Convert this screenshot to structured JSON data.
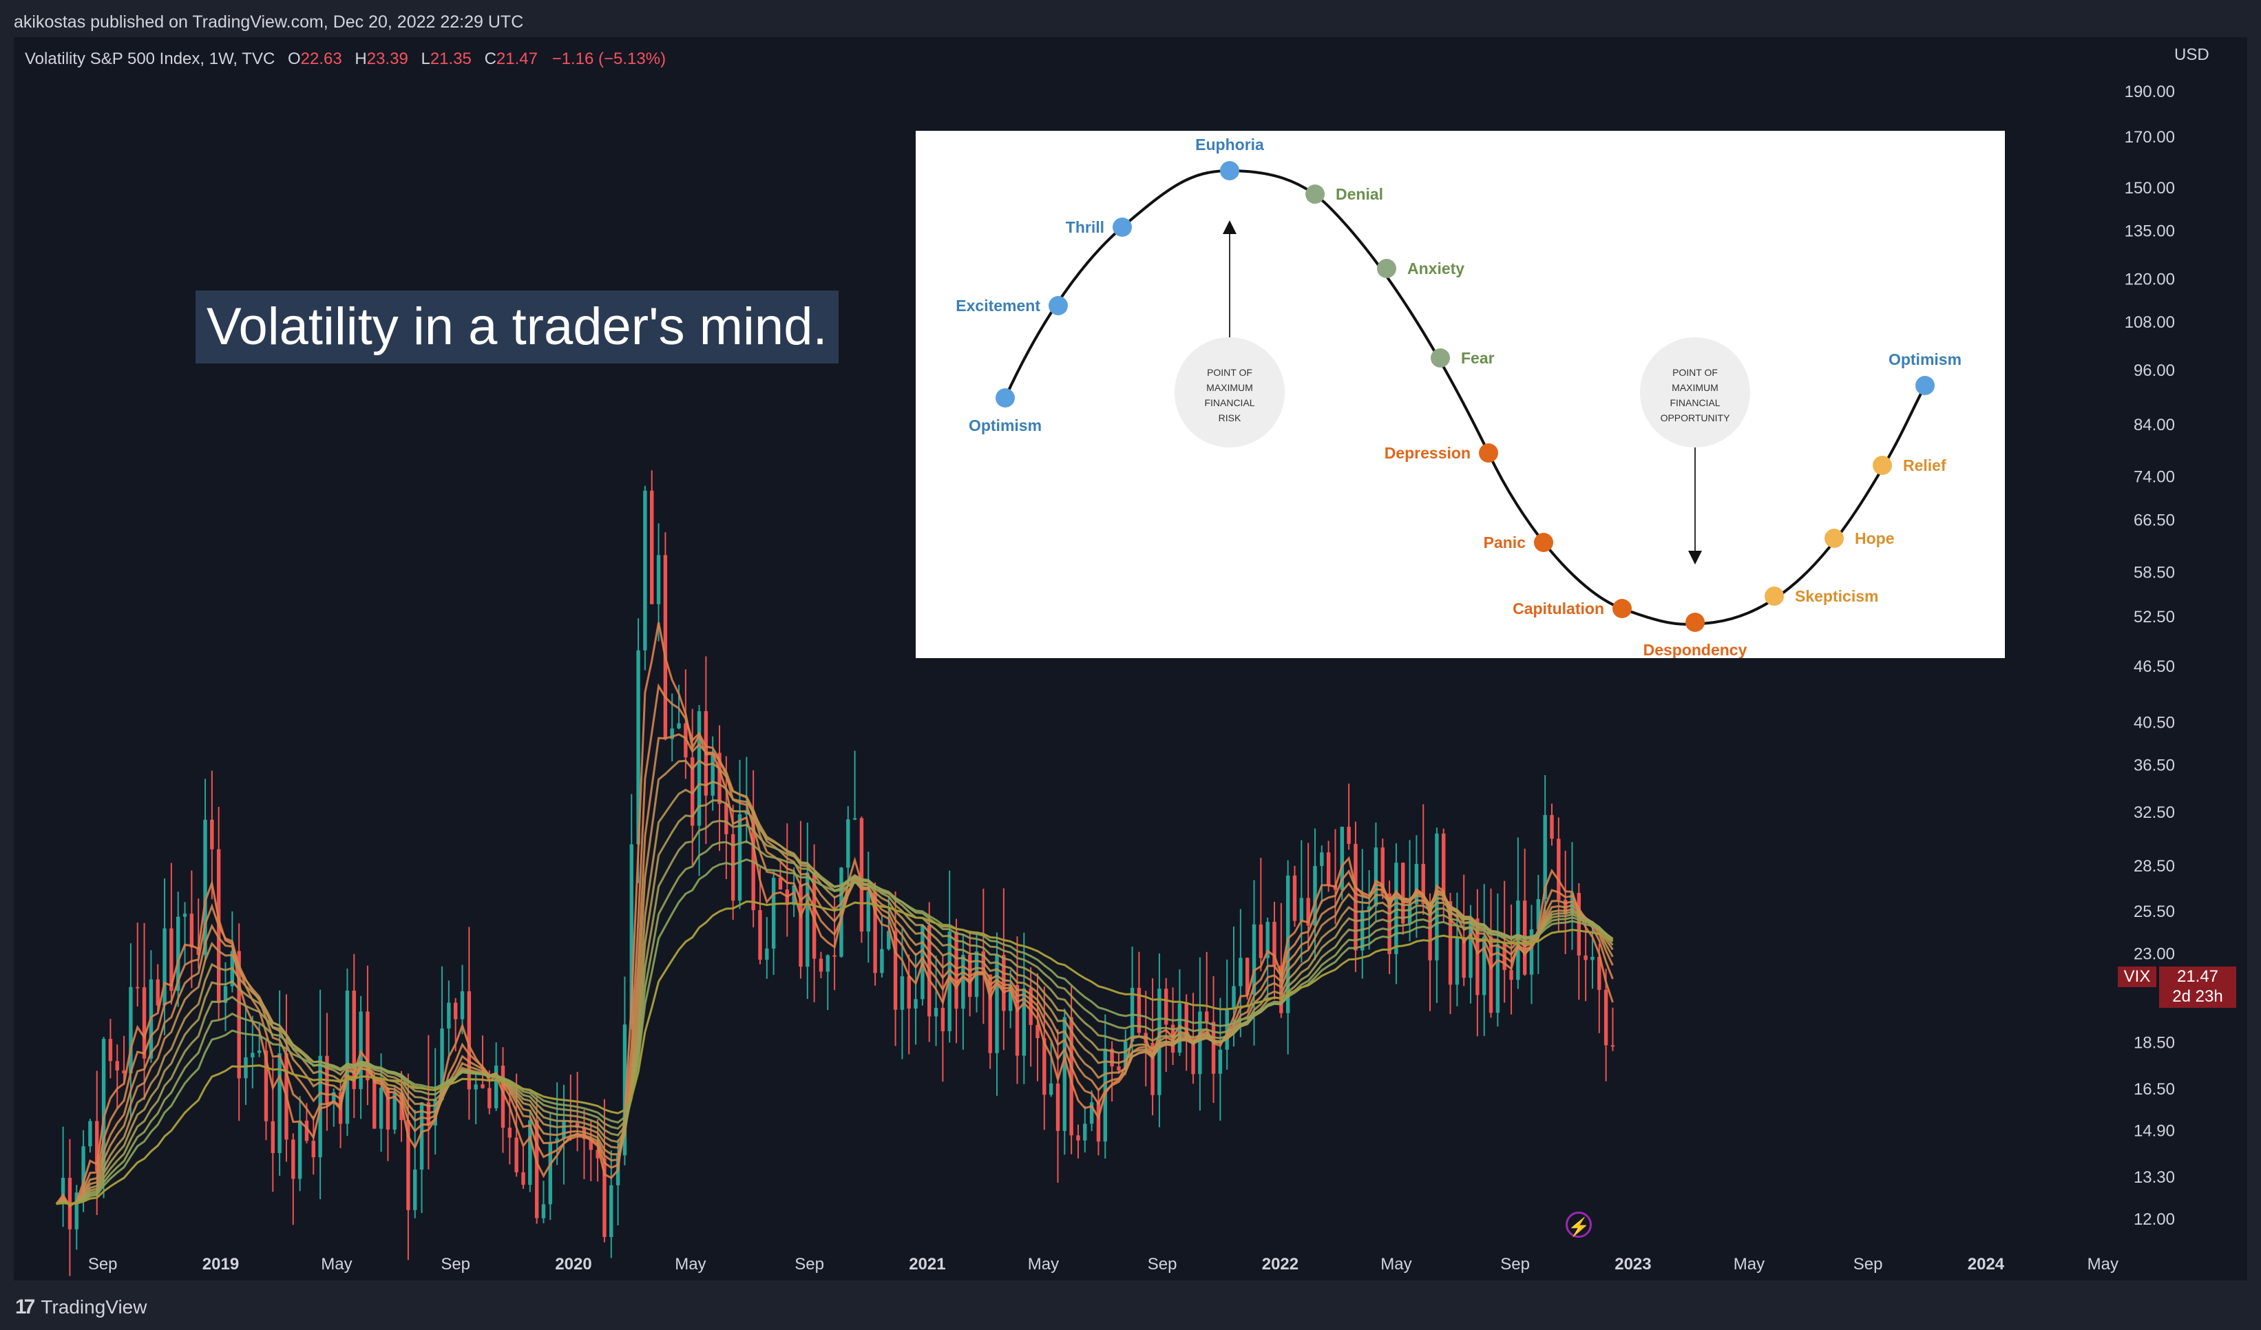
{
  "header": {
    "published": "akikostas published on TradingView.com, Dec 20, 2022 22:29 UTC"
  },
  "legend": {
    "symbol": "Volatility S&P 500 Index, 1W, TVC",
    "o_label": "O",
    "o_value": "22.63",
    "h_label": "H",
    "h_value": "23.39",
    "l_label": "L",
    "l_value": "21.35",
    "c_label": "C",
    "c_value": "21.47",
    "change": "−1.16 (−5.13%)"
  },
  "currency": "USD",
  "headline": "Volatility in a trader's mind.",
  "price_tag": {
    "symbol": "VIX",
    "price": "21.47",
    "countdown": "2d 23h"
  },
  "footer": {
    "brand": "TradingView"
  },
  "colors": {
    "up": "#26a69a",
    "down": "#ef5350",
    "background": "#131722",
    "ma_long": "#a59a3a"
  },
  "icons": {
    "brand": "tradingview-logo-icon",
    "lightning": "lightning-icon"
  },
  "chart_data": {
    "type": "candlestick",
    "symbol": "VIX",
    "interval": "1W",
    "y_scale": "log",
    "y_ticks": [
      "190.00",
      "170.00",
      "150.00",
      "135.00",
      "120.00",
      "108.00",
      "96.00",
      "84.00",
      "74.00",
      "66.50",
      "58.50",
      "52.50",
      "46.50",
      "40.50",
      "36.50",
      "32.50",
      "28.50",
      "25.50",
      "23.00",
      "18.50",
      "16.50",
      "14.90",
      "13.30",
      "12.00"
    ],
    "x_ticks": [
      "Sep",
      "2019",
      "May",
      "Sep",
      "2020",
      "May",
      "Sep",
      "2021",
      "May",
      "Sep",
      "2022",
      "May",
      "Sep",
      "2023",
      "May",
      "Sep",
      "2024",
      "May"
    ],
    "x_tick_bold": [
      false,
      true,
      false,
      false,
      true,
      false,
      false,
      true,
      false,
      false,
      true,
      false,
      false,
      true,
      false,
      false,
      true,
      false
    ],
    "series": [
      {
        "anchors": [
          [
            "2018-07",
            12.5
          ],
          [
            "2018-10",
            21.0
          ],
          [
            "2018-12",
            28.0
          ],
          [
            "2019-01",
            19.5
          ],
          [
            "2019-03",
            14.5
          ],
          [
            "2019-05",
            18.5
          ],
          [
            "2019-07",
            14.0
          ],
          [
            "2019-08",
            20.0
          ],
          [
            "2019-10",
            15.5
          ],
          [
            "2019-12",
            13.0
          ],
          [
            "2020-02",
            14.0
          ],
          [
            "2020-03",
            66.0
          ],
          [
            "2020-04",
            40.0
          ],
          [
            "2020-06",
            30.0
          ],
          [
            "2020-08",
            24.0
          ],
          [
            "2020-10",
            29.0
          ],
          [
            "2020-12",
            22.0
          ],
          [
            "2021-02",
            24.0
          ],
          [
            "2021-04",
            18.0
          ],
          [
            "2021-06",
            17.0
          ],
          [
            "2021-08",
            19.0
          ],
          [
            "2021-10",
            17.0
          ],
          [
            "2021-12",
            22.0
          ],
          [
            "2022-02",
            27.0
          ],
          [
            "2022-03",
            28.0
          ],
          [
            "2022-04",
            25.0
          ],
          [
            "2022-05",
            29.0
          ],
          [
            "2022-07",
            24.0
          ],
          [
            "2022-08",
            20.5
          ],
          [
            "2022-10",
            31.0
          ],
          [
            "2022-11",
            23.0
          ],
          [
            "2022-12",
            21.47
          ]
        ]
      }
    ],
    "last": {
      "open": 22.63,
      "high": 23.39,
      "low": 21.35,
      "close": 21.47
    },
    "moving_averages": {
      "count": 9,
      "long_term": "gold"
    }
  },
  "cycle_diagram": {
    "labels": {
      "optimism_start": "Optimism",
      "excitement": "Excitement",
      "thrill": "Thrill",
      "euphoria": "Euphoria",
      "denial": "Denial",
      "anxiety": "Anxiety",
      "fear": "Fear",
      "depression": "Depression",
      "panic": "Panic",
      "capitulation": "Capitulation",
      "despondency": "Despondency",
      "skepticism": "Skepticism",
      "hope": "Hope",
      "relief": "Relief",
      "optimism_end": "Optimism"
    },
    "risk_circle": [
      "POINT OF",
      "MAXIMUM",
      "FINANCIAL",
      "RISK"
    ],
    "opportunity_circle": [
      "POINT OF",
      "MAXIMUM",
      "FINANCIAL",
      "OPPORTUNITY"
    ],
    "colors": {
      "blue": "#5aa0de",
      "green": "#8fa884",
      "green_text": "#6b8f4e",
      "orange": "#e0661a",
      "yellow": "#f2b451",
      "yellow_text": "#d9902b",
      "blue_text": "#3a7fb8",
      "circle": "#eeeeee"
    }
  }
}
